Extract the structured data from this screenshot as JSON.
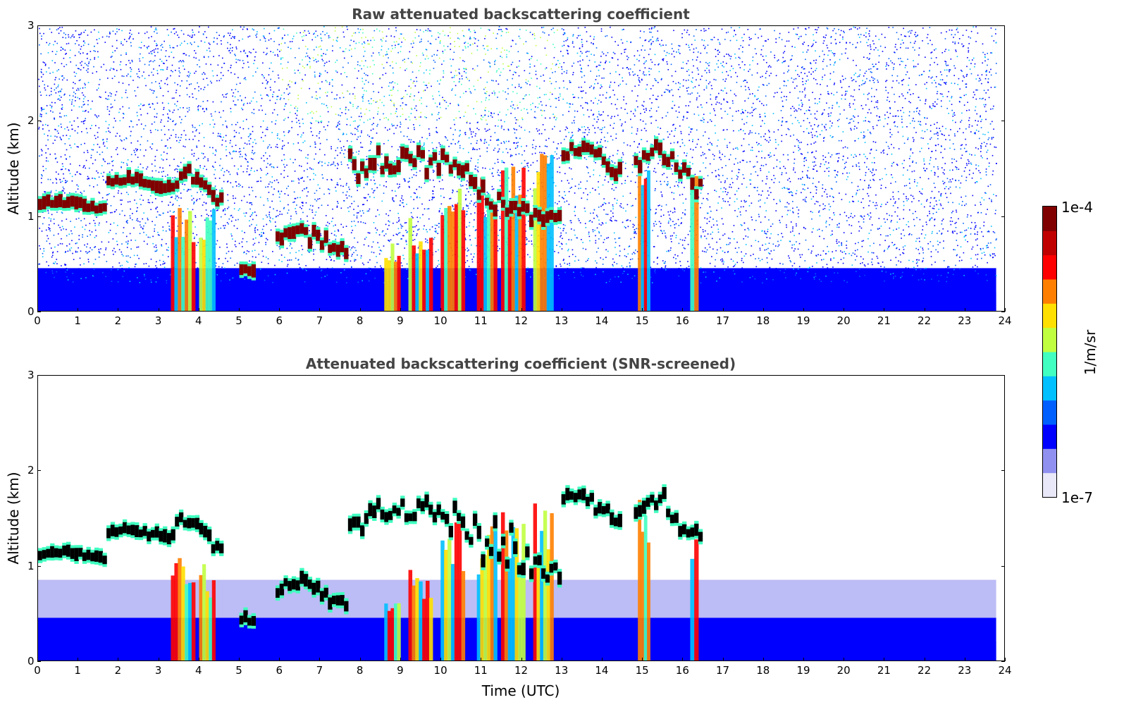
{
  "chart_data": [
    {
      "type": "heatmap",
      "title": "Raw attenuated backscattering coefficient",
      "xlabel": "",
      "ylabel": "Altitude (km)",
      "xlim": [
        0,
        24
      ],
      "ylim": [
        0,
        3
      ],
      "xticks": [
        "0",
        "1",
        "2",
        "3",
        "4",
        "5",
        "6",
        "7",
        "8",
        "9",
        "10",
        "11",
        "12",
        "13",
        "14",
        "15",
        "16",
        "17",
        "18",
        "19",
        "20",
        "21",
        "22",
        "23",
        "24"
      ],
      "yticks": [
        "0",
        "1",
        "2",
        "3"
      ],
      "screened": false,
      "data_end_hour": 23.8,
      "cloud_layers": [
        {
          "t": [
            0.0,
            1.7
          ],
          "base": 1.0,
          "top": 1.15
        },
        {
          "t": [
            1.7,
            3.3
          ],
          "base": 1.2,
          "top": 1.4
        },
        {
          "t": [
            3.3,
            4.6
          ],
          "base": 1.05,
          "top": 1.6
        },
        {
          "t": [
            5.0,
            5.4
          ],
          "base": 0.3,
          "top": 0.45
        },
        {
          "t": [
            5.9,
            7.7
          ],
          "base": 0.45,
          "top": 0.95
        },
        {
          "t": [
            7.7,
            13.0
          ],
          "base": 0.7,
          "top": 2.0
        },
        {
          "t": [
            13.0,
            14.5
          ],
          "base": 1.3,
          "top": 1.9
        },
        {
          "t": [
            14.8,
            16.5
          ],
          "base": 1.1,
          "top": 1.95
        }
      ],
      "precip_shafts": [
        {
          "t": [
            3.3,
            3.9
          ],
          "top": 1.2
        },
        {
          "t": [
            4.0,
            4.4
          ],
          "top": 1.1
        },
        {
          "t": [
            8.6,
            9.0
          ],
          "top": 0.8
        },
        {
          "t": [
            9.2,
            9.8
          ],
          "top": 1.0
        },
        {
          "t": [
            10.0,
            10.6
          ],
          "top": 1.5
        },
        {
          "t": [
            10.9,
            11.4
          ],
          "top": 1.5
        },
        {
          "t": [
            11.5,
            12.1
          ],
          "top": 1.6
        },
        {
          "t": [
            12.3,
            12.8
          ],
          "top": 1.7
        },
        {
          "t": [
            14.9,
            15.2
          ],
          "top": 1.7
        },
        {
          "t": [
            16.2,
            16.4
          ],
          "top": 1.6
        }
      ]
    },
    {
      "type": "heatmap",
      "title": "Attenuated backscattering coefficient (SNR-screened)",
      "xlabel": "Time (UTC)",
      "ylabel": "Altitude (km)",
      "xlim": [
        0,
        24
      ],
      "ylim": [
        0,
        3
      ],
      "xticks": [
        "0",
        "1",
        "2",
        "3",
        "4",
        "5",
        "6",
        "7",
        "8",
        "9",
        "10",
        "11",
        "12",
        "13",
        "14",
        "15",
        "16",
        "17",
        "18",
        "19",
        "20",
        "21",
        "22",
        "23",
        "24"
      ],
      "yticks": [
        "0",
        "1",
        "2",
        "3"
      ],
      "screened": true,
      "data_end_hour": 23.8
    }
  ],
  "colorbar": {
    "label": "1/m/sr",
    "max_label": "1e-4",
    "min_label": "1e-7",
    "colors": [
      "#e8e8f8",
      "#9090f0",
      "#0000ff",
      "#0060ff",
      "#00c0ff",
      "#40ffc0",
      "#c0ff40",
      "#ffe000",
      "#ff8000",
      "#ff0000",
      "#c00000",
      "#800000"
    ]
  }
}
